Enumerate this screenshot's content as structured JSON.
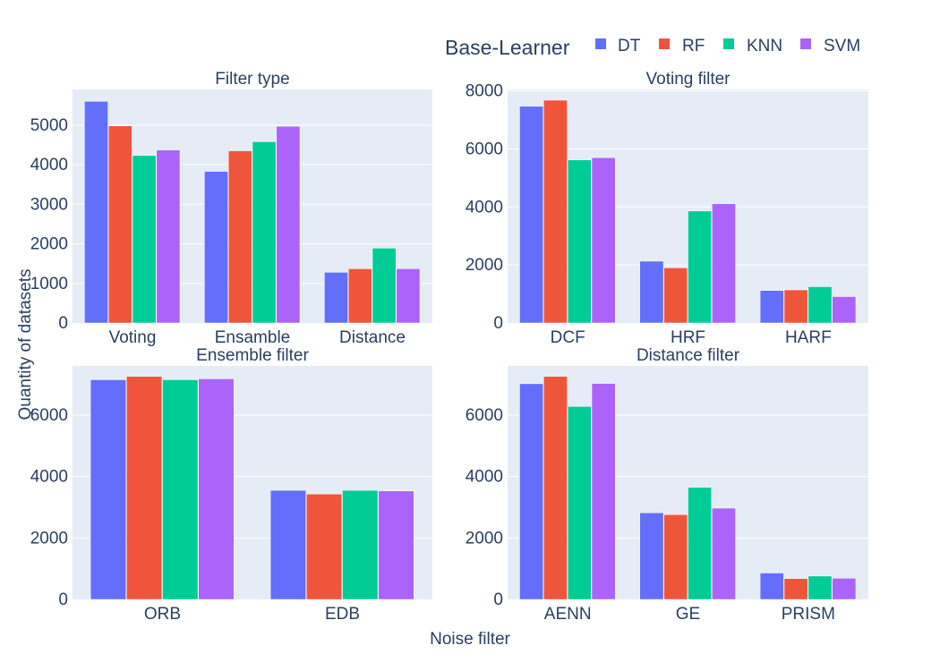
{
  "legend": {
    "title": "Base-Learner",
    "items": [
      {
        "name": "DT",
        "color": "#636efa"
      },
      {
        "name": "RF",
        "color": "#ef553b"
      },
      {
        "name": "KNN",
        "color": "#00cc96"
      },
      {
        "name": "SVM",
        "color": "#ab63fa"
      }
    ]
  },
  "shared_labels": {
    "ylabel": "Quantity of datasets",
    "xlabel": "Noise filter"
  },
  "chart_data": [
    {
      "type": "bar",
      "title": "Filter type",
      "categories": [
        "Voting",
        "Ensamble",
        "Distance"
      ],
      "series": [
        {
          "name": "DT",
          "values": [
            5600,
            3830,
            1280
          ]
        },
        {
          "name": "RF",
          "values": [
            4980,
            4350,
            1370
          ]
        },
        {
          "name": "KNN",
          "values": [
            4230,
            4580,
            1890
          ]
        },
        {
          "name": "SVM",
          "values": [
            4370,
            4970,
            1370
          ]
        }
      ],
      "ylim": [
        0,
        5900
      ],
      "yticks": [
        0,
        1000,
        2000,
        3000,
        4000,
        5000
      ]
    },
    {
      "type": "bar",
      "title": "Voting filter",
      "categories": [
        "DCF",
        "HRF",
        "HARF"
      ],
      "series": [
        {
          "name": "DT",
          "values": [
            7470,
            2130,
            1120
          ]
        },
        {
          "name": "RF",
          "values": [
            7680,
            1900,
            1140
          ]
        },
        {
          "name": "KNN",
          "values": [
            5620,
            3860,
            1250
          ]
        },
        {
          "name": "SVM",
          "values": [
            5700,
            4110,
            910
          ]
        }
      ],
      "ylim": [
        0,
        8050
      ],
      "yticks": [
        0,
        2000,
        4000,
        6000,
        8000
      ]
    },
    {
      "type": "bar",
      "title": "Ensemble filter",
      "categories": [
        "ORB",
        "EDB"
      ],
      "series": [
        {
          "name": "DT",
          "values": [
            7150,
            3550
          ]
        },
        {
          "name": "RF",
          "values": [
            7260,
            3430
          ]
        },
        {
          "name": "KNN",
          "values": [
            7150,
            3550
          ]
        },
        {
          "name": "SVM",
          "values": [
            7180,
            3530
          ]
        }
      ],
      "ylim": [
        0,
        7600
      ],
      "yticks": [
        0,
        2000,
        4000,
        6000
      ]
    },
    {
      "type": "bar",
      "title": "Distance filter",
      "categories": [
        "AENN",
        "GE",
        "PRISM"
      ],
      "series": [
        {
          "name": "DT",
          "values": [
            7020,
            2820,
            860
          ]
        },
        {
          "name": "RF",
          "values": [
            7260,
            2760,
            680
          ]
        },
        {
          "name": "KNN",
          "values": [
            6280,
            3650,
            760
          ]
        },
        {
          "name": "SVM",
          "values": [
            7030,
            2970,
            690
          ]
        }
      ],
      "ylim": [
        0,
        7600
      ],
      "yticks": [
        0,
        2000,
        4000,
        6000
      ]
    }
  ]
}
